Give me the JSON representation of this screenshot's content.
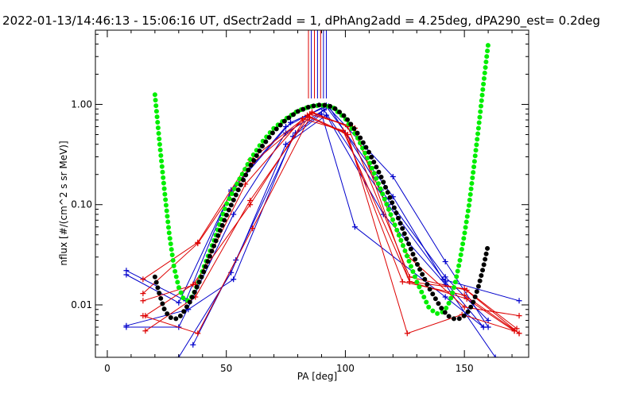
{
  "chart_data": {
    "type": "line",
    "title": "2022-01-13/14:46:13 - 15:06:16 UT, dSectr2add = 1, dPhAng2add = 4.25deg, dPA290_est=   0.2deg",
    "xlabel": "PA [deg]",
    "ylabel": "nflux [#/(cm^2 s sr MeV)]",
    "xlim": [
      -5,
      177
    ],
    "ylim": [
      0.003,
      5.5
    ],
    "yscale": "log",
    "xticks": [
      0,
      50,
      100,
      150
    ],
    "xtick_labels": [
      "0",
      "50",
      "100",
      "150"
    ],
    "yticks": [
      0.01,
      0.1,
      1.0
    ],
    "ytick_labels": [
      "0.01",
      "0.10",
      "1.00"
    ],
    "grid": false,
    "colors": {
      "red": "#dd0000",
      "blue": "#0000cc",
      "green": "#00ee00",
      "black": "#000000"
    },
    "marker_lines": [
      {
        "x": 84.5,
        "color": "#dd0000"
      },
      {
        "x": 85.7,
        "color": "#0000cc"
      },
      {
        "x": 87.0,
        "color": "#dd0000"
      },
      {
        "x": 88.3,
        "color": "#0000cc"
      },
      {
        "x": 89.6,
        "color": "#dd0000"
      },
      {
        "x": 90.8,
        "color": "#0000cc"
      },
      {
        "x": 92.0,
        "color": "#0000cc"
      }
    ],
    "series": [
      {
        "color": "#0000cc",
        "x": [
          8,
          33,
          52,
          75,
          92,
          120,
          142,
          160
        ],
        "y": [
          0.022,
          0.011,
          0.14,
          0.6,
          0.98,
          0.19,
          0.027,
          0.006
        ]
      },
      {
        "color": "#0000cc",
        "x": [
          8,
          30,
          52,
          77,
          92,
          120,
          141,
          173
        ],
        "y": [
          0.02,
          0.0105,
          0.135,
          0.66,
          0.95,
          0.12,
          0.018,
          0.011
        ]
      },
      {
        "color": "#0000cc",
        "x": [
          8,
          30,
          53,
          75,
          91,
          118,
          142,
          158
        ],
        "y": [
          0.006,
          0.006,
          0.08,
          0.52,
          0.88,
          0.1,
          0.017,
          0.006
        ]
      },
      {
        "color": "#0000cc",
        "x": [
          30,
          52,
          75,
          92,
          116,
          142,
          163
        ],
        "y": [
          0.003,
          0.021,
          0.4,
          0.78,
          0.08,
          0.016,
          0.003
        ]
      },
      {
        "color": "#0000cc",
        "x": [
          8,
          34,
          53,
          78,
          90,
          104,
          142,
          158
        ],
        "y": [
          0.0062,
          0.009,
          0.018,
          0.48,
          0.8,
          0.06,
          0.012,
          0.006
        ]
      },
      {
        "color": "#0000cc",
        "x": [
          36,
          54,
          79,
          93,
          115,
          142,
          160
        ],
        "y": [
          0.004,
          0.028,
          0.52,
          0.96,
          0.14,
          0.019,
          0.007
        ]
      },
      {
        "color": "#dd0000",
        "x": [
          15,
          38,
          60,
          85,
          103,
          126,
          150,
          173
        ],
        "y": [
          0.018,
          0.042,
          0.28,
          0.8,
          0.6,
          0.031,
          0.0095,
          0.0078
        ]
      },
      {
        "color": "#dd0000",
        "x": [
          15,
          38,
          61,
          86,
          104,
          127,
          150,
          173
        ],
        "y": [
          0.013,
          0.041,
          0.26,
          0.82,
          0.58,
          0.017,
          0.0145,
          0.0052
        ]
      },
      {
        "color": "#dd0000",
        "x": [
          15,
          37,
          58,
          82,
          99,
          127,
          151,
          171
        ],
        "y": [
          0.011,
          0.016,
          0.16,
          0.72,
          0.55,
          0.017,
          0.0115,
          0.0055
        ]
      },
      {
        "color": "#dd0000",
        "x": [
          16,
          36,
          60,
          84,
          100,
          124,
          150,
          173
        ],
        "y": [
          0.0078,
          0.016,
          0.1,
          0.78,
          0.52,
          0.017,
          0.0125,
          0.0052
        ]
      },
      {
        "color": "#dd0000",
        "x": [
          15,
          38,
          61,
          85,
          101,
          126,
          149,
          171
        ],
        "y": [
          0.0078,
          0.0052,
          0.058,
          0.74,
          0.5,
          0.0052,
          0.008,
          0.0055
        ]
      },
      {
        "color": "#dd0000",
        "x": [
          16,
          37,
          60,
          86,
          101,
          127,
          151,
          172
        ],
        "y": [
          0.0055,
          0.012,
          0.11,
          0.84,
          0.6,
          0.019,
          0.014,
          0.0058
        ]
      }
    ],
    "fits": [
      {
        "color": "#00ee00",
        "x": [
          20,
          22,
          24,
          26,
          28,
          30,
          32,
          34,
          36,
          38,
          40,
          45,
          50,
          55,
          60,
          65,
          70,
          75,
          80,
          85,
          88,
          90,
          92,
          95,
          100,
          105,
          110,
          115,
          120,
          125,
          130,
          135,
          138,
          140,
          142,
          144,
          146,
          148,
          150,
          152,
          154,
          156,
          158,
          160
        ],
        "y": [
          1.25,
          0.4,
          0.14,
          0.052,
          0.024,
          0.015,
          0.0115,
          0.011,
          0.0125,
          0.016,
          0.022,
          0.045,
          0.1,
          0.17,
          0.28,
          0.42,
          0.58,
          0.72,
          0.86,
          0.95,
          0.97,
          0.98,
          0.97,
          0.92,
          0.72,
          0.47,
          0.27,
          0.14,
          0.07,
          0.035,
          0.017,
          0.0095,
          0.0082,
          0.0082,
          0.009,
          0.011,
          0.016,
          0.027,
          0.05,
          0.1,
          0.24,
          0.6,
          1.6,
          4.0
        ]
      },
      {
        "color": "#000000",
        "x": [
          20,
          22,
          24,
          26,
          28,
          30,
          32,
          35,
          40,
          45,
          50,
          55,
          60,
          65,
          70,
          75,
          80,
          85,
          88,
          90,
          93,
          96,
          100,
          105,
          110,
          115,
          120,
          125,
          130,
          135,
          140,
          143,
          146,
          148,
          150,
          152,
          154,
          156,
          158,
          160
        ],
        "y": [
          0.019,
          0.0125,
          0.009,
          0.0076,
          0.0072,
          0.0074,
          0.0085,
          0.011,
          0.02,
          0.04,
          0.078,
          0.14,
          0.24,
          0.38,
          0.54,
          0.7,
          0.85,
          0.95,
          0.98,
          0.99,
          0.97,
          0.9,
          0.75,
          0.52,
          0.33,
          0.19,
          0.1,
          0.05,
          0.026,
          0.015,
          0.0095,
          0.0078,
          0.0072,
          0.0073,
          0.0078,
          0.0088,
          0.011,
          0.0155,
          0.024,
          0.04
        ]
      }
    ]
  }
}
